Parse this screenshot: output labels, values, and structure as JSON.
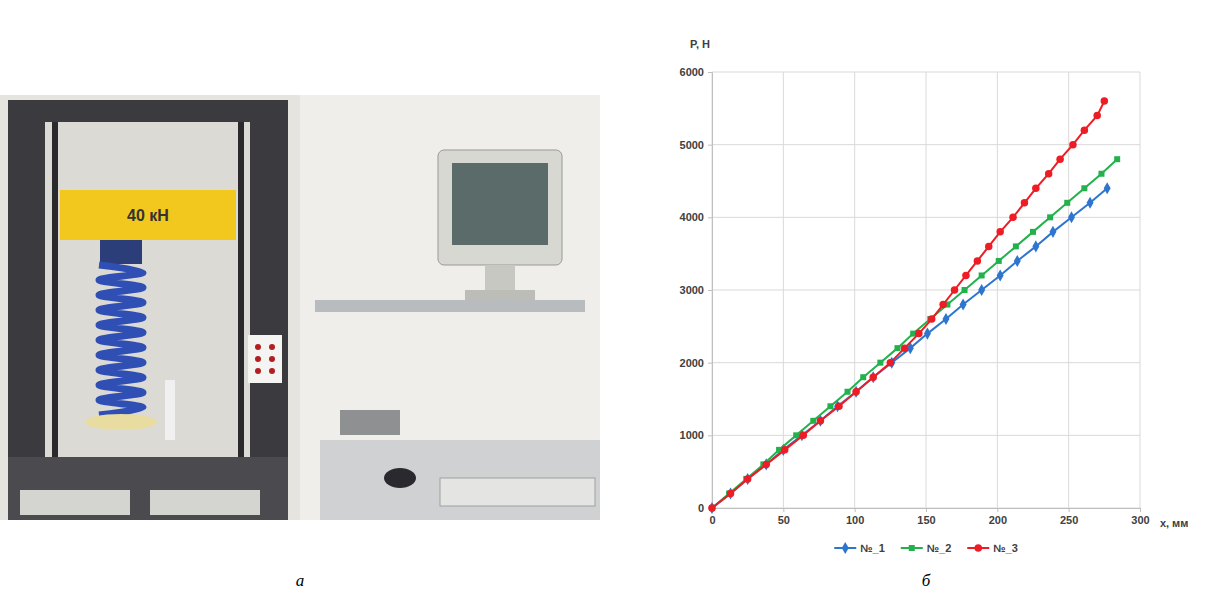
{
  "chart_data": {
    "type": "line",
    "panel_label": "б",
    "y_label": "P, Н",
    "x_label": "x, мм",
    "xlim": [
      0,
      300
    ],
    "xticks": [
      0,
      50,
      100,
      150,
      200,
      250,
      300
    ],
    "ylim": [
      0,
      6000
    ],
    "yticks": [
      0,
      1000,
      2000,
      3000,
      4000,
      5000,
      6000
    ],
    "grid": true,
    "legend": "bottom",
    "series": [
      {
        "name": "№_1",
        "color": "#2e75d0",
        "marker": "diamond",
        "x": [
          0,
          13,
          25,
          38,
          50,
          63,
          76,
          88,
          101,
          113,
          126,
          139,
          151,
          164,
          176,
          189,
          202,
          214,
          227,
          239,
          252,
          265,
          277
        ],
        "values": [
          0,
          200,
          400,
          600,
          800,
          1000,
          1200,
          1400,
          1600,
          1800,
          2000,
          2200,
          2400,
          2600,
          2800,
          3000,
          3200,
          3400,
          3600,
          3800,
          4000,
          4200,
          4400
        ]
      },
      {
        "name": "№_2",
        "color": "#22b14c",
        "marker": "square",
        "x": [
          0,
          12,
          24,
          36,
          47,
          59,
          71,
          83,
          95,
          106,
          118,
          130,
          141,
          153,
          165,
          177,
          189,
          201,
          213,
          225,
          237,
          249,
          261,
          273,
          284
        ],
        "values": [
          0,
          200,
          400,
          600,
          800,
          1000,
          1200,
          1400,
          1600,
          1800,
          2000,
          2200,
          2400,
          2600,
          2800,
          3000,
          3200,
          3400,
          3600,
          3800,
          4000,
          4200,
          4400,
          4600,
          4800
        ]
      },
      {
        "name": "№_3",
        "color": "#ee1c24",
        "marker": "circle",
        "x": [
          0,
          13,
          25,
          38,
          51,
          64,
          76,
          89,
          101,
          113,
          125,
          135,
          145,
          154,
          162,
          170,
          178,
          186,
          194,
          202,
          211,
          219,
          227,
          236,
          244,
          253,
          261,
          270,
          275
        ],
        "values": [
          0,
          200,
          400,
          600,
          800,
          1000,
          1200,
          1400,
          1600,
          1800,
          2000,
          2200,
          2400,
          2600,
          2800,
          3000,
          3200,
          3400,
          3600,
          3800,
          4000,
          4200,
          4400,
          4600,
          4800,
          5000,
          5200,
          5400,
          5600
        ]
      }
    ]
  },
  "photo": {
    "panel_label": "а",
    "texts": [
      "40 кН"
    ]
  }
}
